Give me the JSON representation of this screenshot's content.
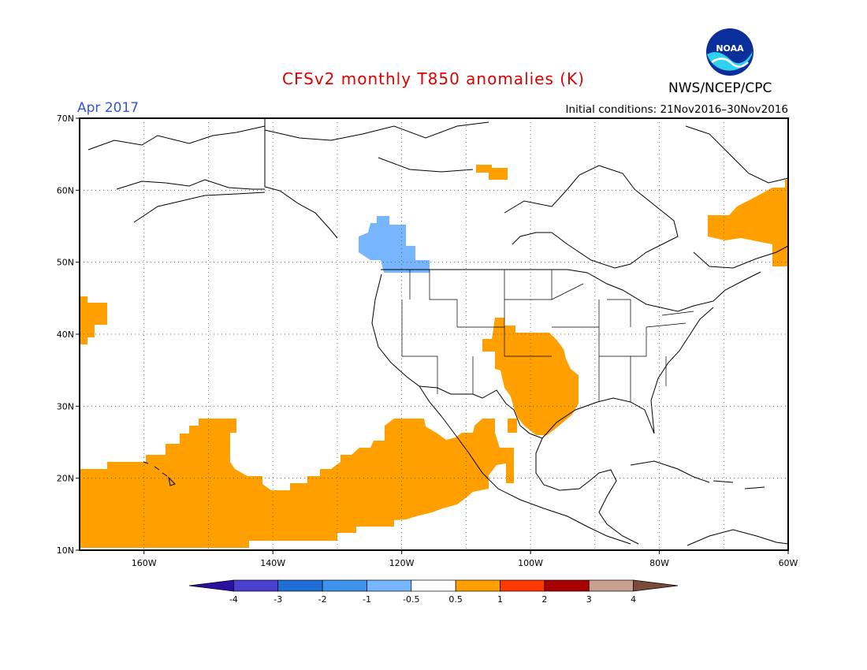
{
  "header": {
    "title": "CFSv2 monthly T850 anomalies (K)",
    "title_color": "#dd0000",
    "month_label": "Apr 2017",
    "month_color": "#3355dd",
    "initial_conditions": "Initial conditions: 21Nov2016–30Nov2016",
    "agency": "NWS/NCEP/CPC",
    "logo_text": "NOAA"
  },
  "map": {
    "lon_range": [
      -170,
      -60
    ],
    "lat_range": [
      10,
      70
    ],
    "lat_labels": [
      "70N",
      "60N",
      "50N",
      "40N",
      "30N",
      "20N",
      "10N"
    ],
    "lon_labels": [
      "160W",
      "140W",
      "120W",
      "100W",
      "80W",
      "60W"
    ],
    "grid": "dotted"
  },
  "anomaly_regions": [
    {
      "name": "western-canada-cold-anomaly",
      "level": "-1 to -0.5",
      "color": "#77b5fe"
    },
    {
      "name": "southern-plains-warm-anomaly",
      "level": "0.5 to 1",
      "color": "#ffa000"
    },
    {
      "name": "subtropical-pacific-warm-anomaly",
      "level": "0.5 to 1",
      "color": "#ffa000"
    },
    {
      "name": "eastern-canada-warm-anomaly",
      "level": "0.5 to 1",
      "color": "#ffa000"
    },
    {
      "name": "hudson-bay-warm-anomaly",
      "level": "0.5 to 1",
      "color": "#ffa000"
    },
    {
      "name": "north-pacific-warm-anomaly",
      "level": "0.5 to 1",
      "color": "#ffa000"
    }
  ],
  "colorbar": {
    "labels": [
      "-4",
      "-3",
      "-2",
      "-1",
      "-0.5",
      "0.5",
      "1",
      "2",
      "3",
      "4"
    ],
    "colors": [
      "#2a0fa0",
      "#4a3fd0",
      "#1f6ed6",
      "#3e92ec",
      "#77b5fe",
      "#ffffff",
      "#ffa000",
      "#ff3a00",
      "#a80000",
      "#c8a090",
      "#7a4a3a"
    ]
  }
}
